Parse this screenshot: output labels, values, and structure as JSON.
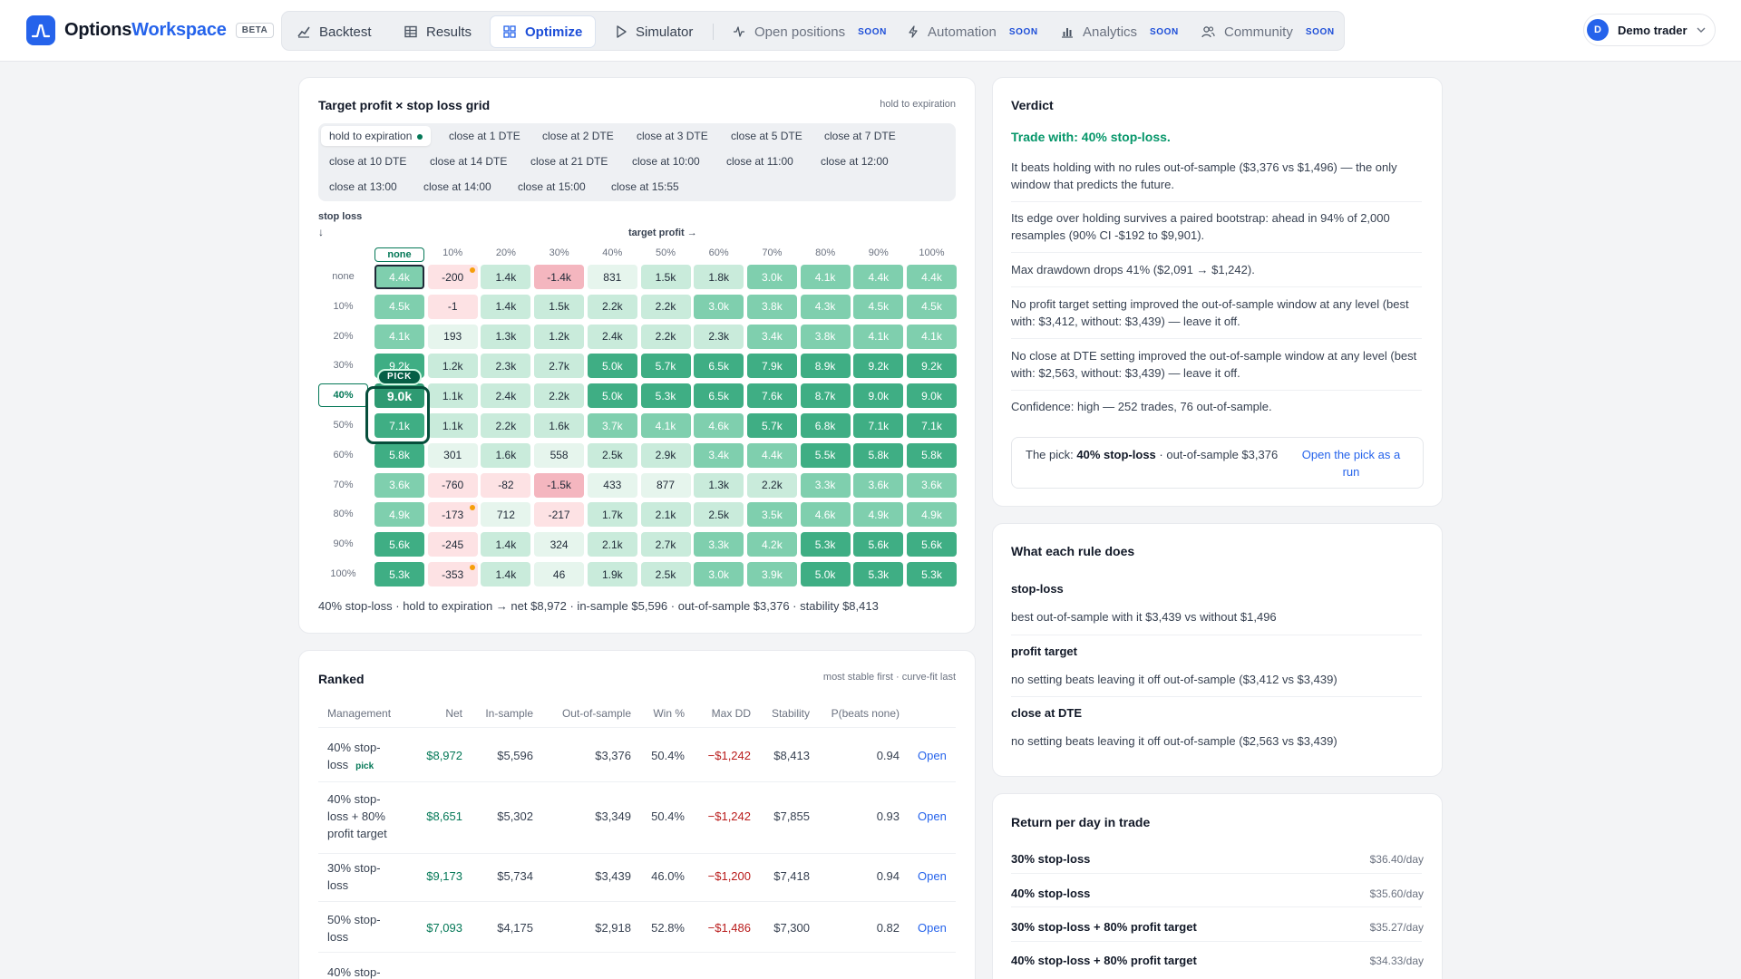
{
  "brand": {
    "name_main": "Options",
    "name_accent": "Workspace",
    "badge": "BETA"
  },
  "nav": {
    "items": [
      {
        "label": "Backtest",
        "icon": "chart-line-icon"
      },
      {
        "label": "Results",
        "icon": "table-icon"
      },
      {
        "label": "Optimize",
        "icon": "grid-icon",
        "active": true
      },
      {
        "label": "Simulator",
        "icon": "play-icon"
      },
      {
        "label": "Open positions",
        "icon": "activity-icon",
        "soon": "SOON"
      },
      {
        "label": "Automation",
        "icon": "bolt-icon",
        "soon": "SOON"
      },
      {
        "label": "Analytics",
        "icon": "bar-chart-icon",
        "soon": "SOON"
      },
      {
        "label": "Community",
        "icon": "users-icon",
        "soon": "SOON"
      }
    ]
  },
  "user": {
    "initial": "D",
    "name": "Demo trader"
  },
  "grid": {
    "title": "Target profit × stop loss grid",
    "note": "hold to expiration",
    "chips": [
      "hold to expiration",
      "close at 1 DTE",
      "close at 2 DTE",
      "close at 3 DTE",
      "close at 5 DTE",
      "close at 7 DTE",
      "close at 10 DTE",
      "close at 14 DTE",
      "close at 21 DTE",
      "close at 10:00",
      "close at 11:00",
      "close at 12:00",
      "close at 13:00",
      "close at 14:00",
      "close at 15:00",
      "close at 15:55"
    ],
    "stop_loss_label": "stop loss",
    "stop_loss_arrow": "↓",
    "target_profit_label": "target profit →",
    "col_headers": [
      "none",
      "10%",
      "20%",
      "30%",
      "40%",
      "50%",
      "60%",
      "70%",
      "80%",
      "90%",
      "100%"
    ],
    "row_headers": [
      "none",
      "10%",
      "20%",
      "30%",
      "40%",
      "50%",
      "60%",
      "70%",
      "80%",
      "90%",
      "100%"
    ],
    "values": [
      [
        "4.4k",
        "-200",
        "1.4k",
        "-1.4k",
        "831",
        "1.5k",
        "1.8k",
        "3.0k",
        "4.1k",
        "4.4k",
        "4.4k"
      ],
      [
        "4.5k",
        "-1",
        "1.4k",
        "1.5k",
        "2.2k",
        "2.2k",
        "3.0k",
        "3.8k",
        "4.3k",
        "4.5k",
        "4.5k"
      ],
      [
        "4.1k",
        "193",
        "1.3k",
        "1.2k",
        "2.4k",
        "2.2k",
        "2.3k",
        "3.4k",
        "3.8k",
        "4.1k",
        "4.1k"
      ],
      [
        "9.2k",
        "1.2k",
        "2.3k",
        "2.7k",
        "5.0k",
        "5.7k",
        "6.5k",
        "7.9k",
        "8.9k",
        "9.2k",
        "9.2k"
      ],
      [
        "9.0k",
        "1.1k",
        "2.4k",
        "2.2k",
        "5.0k",
        "5.3k",
        "6.5k",
        "7.6k",
        "8.7k",
        "9.0k",
        "9.0k"
      ],
      [
        "7.1k",
        "1.1k",
        "2.2k",
        "1.6k",
        "3.7k",
        "4.1k",
        "4.6k",
        "5.7k",
        "6.8k",
        "7.1k",
        "7.1k"
      ],
      [
        "5.8k",
        "301",
        "1.6k",
        "558",
        "2.5k",
        "2.9k",
        "3.4k",
        "4.4k",
        "5.5k",
        "5.8k",
        "5.8k"
      ],
      [
        "3.6k",
        "-760",
        "-82",
        "-1.5k",
        "433",
        "877",
        "1.3k",
        "2.2k",
        "3.3k",
        "3.6k",
        "3.6k"
      ],
      [
        "4.9k",
        "-173",
        "712",
        "-217",
        "1.7k",
        "2.1k",
        "2.5k",
        "3.5k",
        "4.6k",
        "4.9k",
        "4.9k"
      ],
      [
        "5.6k",
        "-245",
        "1.4k",
        "324",
        "2.1k",
        "2.7k",
        "3.3k",
        "4.2k",
        "5.3k",
        "5.6k",
        "5.6k"
      ],
      [
        "5.3k",
        "-353",
        "1.4k",
        "46",
        "1.9k",
        "2.5k",
        "3.0k",
        "3.9k",
        "5.0k",
        "5.3k",
        "5.3k"
      ]
    ],
    "flagged_cells": [
      [
        0,
        1
      ],
      [
        8,
        1
      ],
      [
        10,
        1
      ]
    ],
    "current_cell": [
      0,
      0
    ],
    "pick_cell": [
      4,
      0
    ],
    "pick_tag": "PICK",
    "colors": {
      "strong": "#3fae84",
      "medium": "#7fcfae",
      "light": "#c9ebdb",
      "faint": "#e6f5ed",
      "neg_light": "#fde2e4",
      "neg_strong": "#f4b6bf",
      "flag": "#f59e0b"
    },
    "summary": "40% stop-loss · hold to expiration → net $8,972 · in-sample $5,596 · out-of-sample $3,376 · stability $8,413"
  },
  "ranked": {
    "title": "Ranked",
    "note": "most stable first · curve-fit last",
    "headers": [
      "Management",
      "Net",
      "In-sample",
      "Out-of-sample",
      "Win %",
      "Max DD",
      "Stability",
      "P(beats none)"
    ],
    "rows": [
      {
        "lines": [
          "40% stop-",
          "loss"
        ],
        "badge": "pick",
        "net": "$8,972",
        "ins": "$5,596",
        "oos": "$3,376",
        "win": "50.4%",
        "dd": "−$1,242",
        "stab": "$8,413",
        "p": "0.94",
        "action": "Open"
      },
      {
        "lines": [
          "40% stop-",
          "loss + 80%",
          "profit target"
        ],
        "net": "$8,651",
        "ins": "$5,302",
        "oos": "$3,349",
        "win": "50.4%",
        "dd": "−$1,242",
        "stab": "$7,855",
        "p": "0.93",
        "action": "Open"
      },
      {
        "lines": [
          "30% stop-",
          "loss"
        ],
        "net": "$9,173",
        "ins": "$5,734",
        "oos": "$3,439",
        "win": "46.0%",
        "dd": "−$1,200",
        "stab": "$7,418",
        "p": "0.94",
        "action": "Open"
      },
      {
        "lines": [
          "50% stop-",
          "loss"
        ],
        "net": "$7,093",
        "ins": "$4,175",
        "oos": "$2,918",
        "win": "52.8%",
        "dd": "−$1,486",
        "stab": "$7,300",
        "p": "0.82",
        "action": "Open"
      },
      {
        "lines": [
          "40% stop-"
        ]
      }
    ]
  },
  "verdict": {
    "title": "Verdict",
    "headline": "Trade with: 40% stop-loss.",
    "paragraphs": [
      "It beats holding with no rules out-of-sample ($3,376 vs $1,496) — the only window that predicts the future.",
      "Its edge over holding survives a paired bootstrap: ahead in 94% of 2,000 resamples (90% CI -$192 to $9,901).",
      "Max drawdown drops 41% ($2,091 → $1,242).",
      "No profit target setting improved the out-of-sample window at any level (best with: $3,412, without: $3,439) — leave it off.",
      "No close at DTE setting improved the out-of-sample window at any level (best with: $2,563, without: $3,439) — leave it off.",
      "Confidence: high — 252 trades, 76 out-of-sample."
    ],
    "pick_prefix": "The pick: ",
    "pick_bold": "40% stop-loss",
    "pick_suffix": " · out-of-sample $3,376",
    "pick_link": "Open the pick as a run"
  },
  "rules": {
    "title": "What each rule does",
    "items": [
      {
        "name": "stop-loss",
        "desc": "best out-of-sample with it $3,439 vs without $1,496"
      },
      {
        "name": "profit target",
        "desc": "no setting beats leaving it off out-of-sample ($3,412 vs $3,439)"
      },
      {
        "name": "close at DTE",
        "desc": "no setting beats leaving it off out-of-sample ($2,563 vs $3,439)"
      }
    ]
  },
  "return_per_day": {
    "title": "Return per day in trade",
    "items": [
      {
        "name": "30% stop-loss",
        "value": "$36.40/day"
      },
      {
        "name": "40% stop-loss",
        "value": "$35.60/day"
      },
      {
        "name": "30% stop-loss + 80% profit target",
        "value": "$35.27/day"
      },
      {
        "name": "40% stop-loss + 80% profit target",
        "value": "$34.33/day"
      }
    ]
  }
}
